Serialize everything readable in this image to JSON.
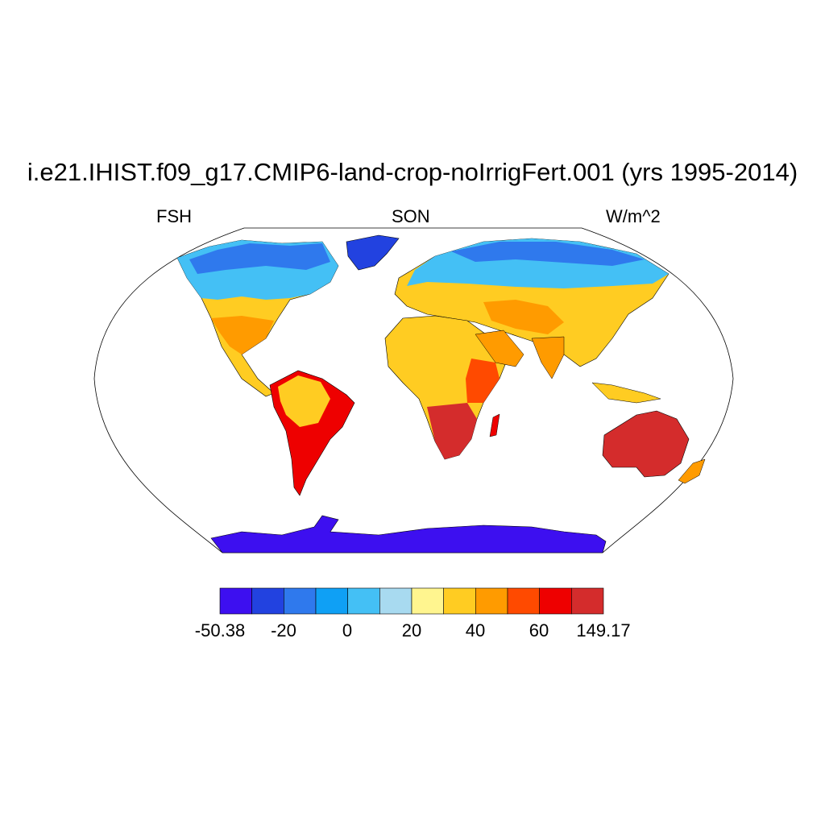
{
  "title": "i.e21.IHIST.f09_g17.CMIP6-land-crop-noIrrigFert.001 (yrs 1995-2014)",
  "subtitle_left": "FSH",
  "subtitle_center": "SON",
  "subtitle_right": "W/m^2",
  "colors": {
    "ocean": "#ffffff",
    "coast": "#000000",
    "palette": [
      "#3d0ff0",
      "#2242e0",
      "#2f79ed",
      "#0fa0f5",
      "#44c0f5",
      "#a8daf0",
      "#fff58f",
      "#ffcc22",
      "#ff9b00",
      "#ff4a00",
      "#ee0000",
      "#d42c2c"
    ]
  },
  "colorbar": {
    "labels": [
      "-50.38",
      "-20",
      "0",
      "20",
      "40",
      "60",
      "149.17"
    ],
    "min": -50.38,
    "max": 149.17,
    "levels": [
      -30,
      -20,
      -10,
      0,
      10,
      20,
      30,
      40,
      50,
      60,
      70
    ]
  },
  "regions": [
    {
      "name": "antarctica",
      "level": 0
    },
    {
      "name": "greenland",
      "level": 1
    },
    {
      "name": "canada-north",
      "level": 3
    },
    {
      "name": "siberia",
      "level": 4
    },
    {
      "name": "eurasia-mid",
      "level": 6
    },
    {
      "name": "north-america-south",
      "level": 7
    },
    {
      "name": "sahara",
      "level": 7
    },
    {
      "name": "south-america",
      "level": 8
    },
    {
      "name": "east-africa",
      "level": 9
    },
    {
      "name": "southern-africa",
      "level": 11
    },
    {
      "name": "australia",
      "level": 11
    },
    {
      "name": "new-zealand",
      "level": 8
    }
  ]
}
